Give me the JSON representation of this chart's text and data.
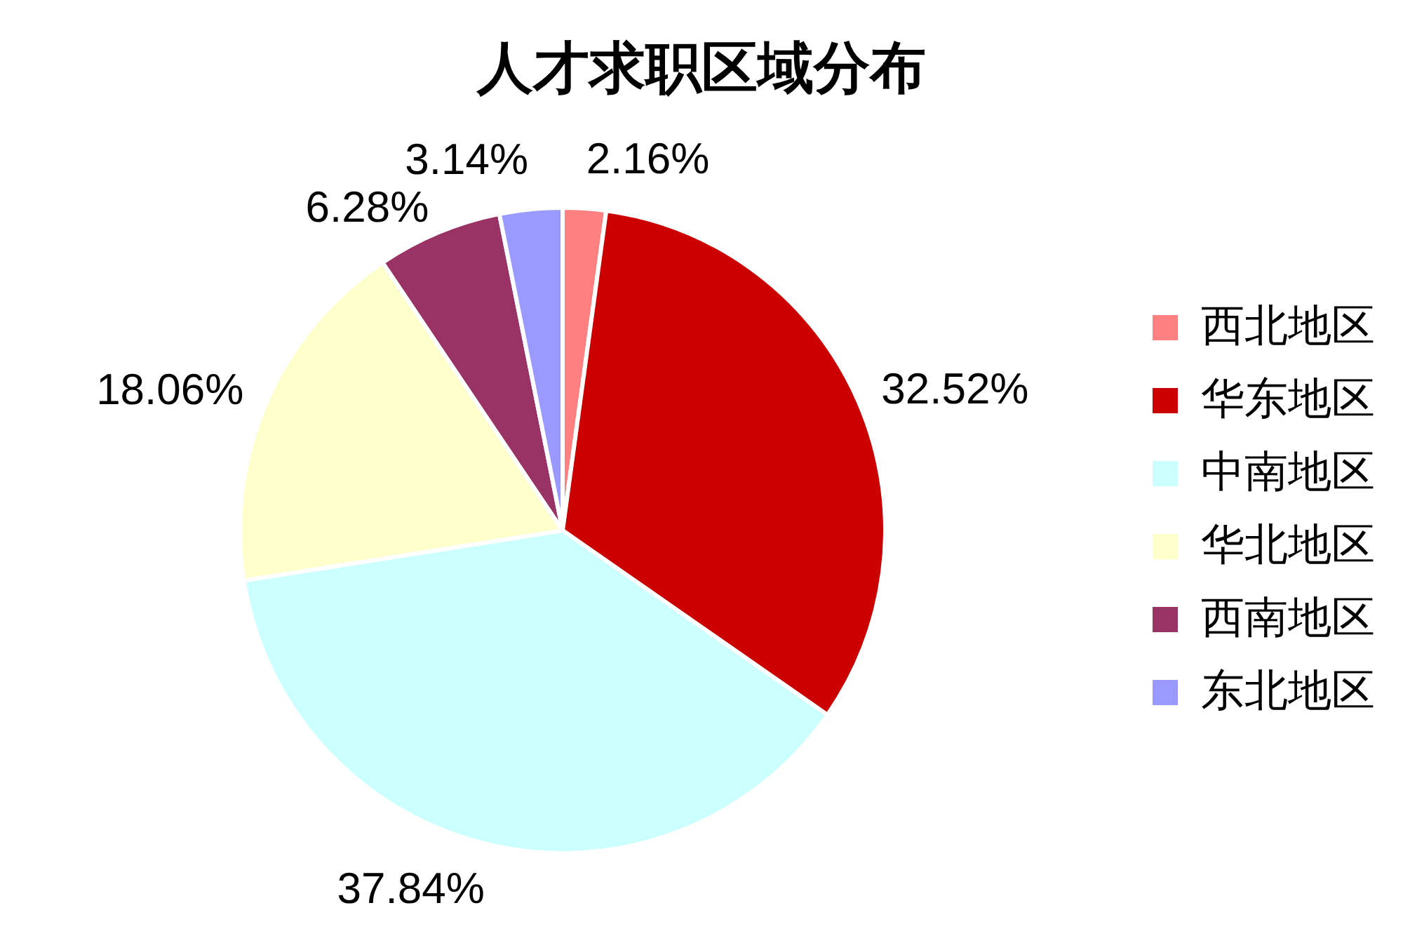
{
  "chart_data": {
    "type": "pie",
    "title": "人才求职区域分布",
    "categories": [
      "西北地区",
      "华东地区",
      "中南地区",
      "华北地区",
      "西南地区",
      "东北地区"
    ],
    "values": [
      2.16,
      32.52,
      37.84,
      18.06,
      6.28,
      3.14
    ],
    "colors": [
      "#ff8080",
      "#cc0000",
      "#ccffff",
      "#ffffcc",
      "#993366",
      "#9999ff"
    ],
    "value_labels": [
      "2.16%",
      "32.52%",
      "37.84%",
      "18.06%",
      "6.28%",
      "3.14%"
    ],
    "legend": "right"
  }
}
